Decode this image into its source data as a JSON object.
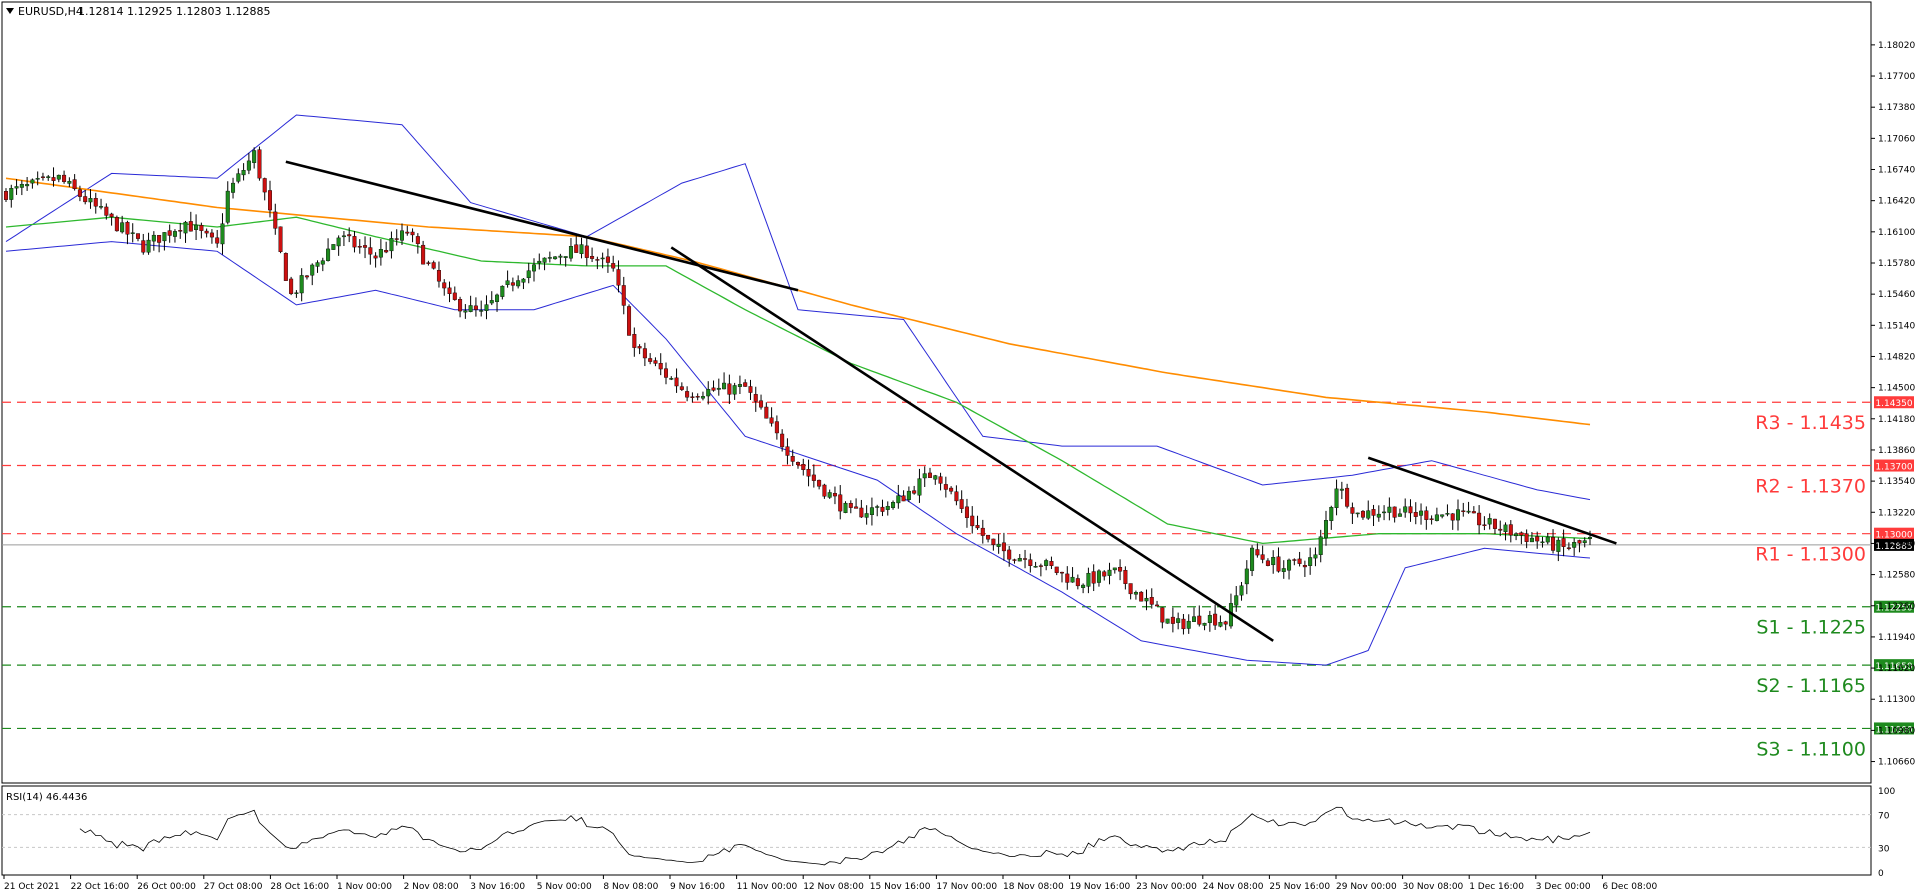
{
  "chart_data": {
    "type": "candlestick",
    "header": {
      "symbol": "EURUSD,H4",
      "ohlc": "1.12814 1.12925 1.12803 1.12885"
    },
    "price_axis": {
      "ylim": [
        1.1045,
        1.1845
      ],
      "ticks": [
        "1.18020",
        "1.17700",
        "1.17380",
        "1.17060",
        "1.16740",
        "1.16420",
        "1.16100",
        "1.15780",
        "1.15460",
        "1.15140",
        "1.14820",
        "1.14500",
        "1.14180",
        "1.13860",
        "1.13540",
        "1.13220",
        "1.12900",
        "1.12580",
        "1.12260",
        "1.11940",
        "1.11620",
        "1.11300",
        "1.10980",
        "1.10660"
      ]
    },
    "time_axis": {
      "labels": [
        "21 Oct 2021",
        "22 Oct 16:00",
        "26 Oct 00:00",
        "27 Oct 08:00",
        "28 Oct 16:00",
        "1 Nov 00:00",
        "2 Nov 08:00",
        "3 Nov 16:00",
        "5 Nov 00:00",
        "8 Nov 08:00",
        "9 Nov 16:00",
        "11 Nov 00:00",
        "12 Nov 08:00",
        "15 Nov 16:00",
        "17 Nov 00:00",
        "18 Nov 08:00",
        "19 Nov 16:00",
        "23 Nov 00:00",
        "24 Nov 08:00",
        "25 Nov 16:00",
        "29 Nov 00:00",
        "30 Nov 08:00",
        "1 Dec 16:00",
        "3 Dec 00:00",
        "6 Dec 08:00"
      ]
    },
    "current_price": {
      "value": 1.12885,
      "label": "1.12885"
    },
    "levels": [
      {
        "name": "R3",
        "value": 1.1435,
        "text": "R3 - 1.1435",
        "tag": "1.14350",
        "color": "#ff3b3b"
      },
      {
        "name": "R2",
        "value": 1.137,
        "text": "R2 - 1.1370",
        "tag": "1.13700",
        "color": "#ff3b3b"
      },
      {
        "name": "R1",
        "value": 1.13,
        "text": "R1 - 1.1300",
        "tag": "1.13000",
        "color": "#ff3b3b"
      },
      {
        "name": "S1",
        "value": 1.1225,
        "text": "S1 - 1.1225",
        "tag": "1.12250",
        "color": "#1e8a1e"
      },
      {
        "name": "S2",
        "value": 1.1165,
        "text": "S2 - 1.1165",
        "tag": "1.11650",
        "color": "#1e8a1e"
      },
      {
        "name": "S3",
        "value": 1.11,
        "text": "S3 - 1.1100",
        "tag": "1.11000",
        "color": "#1e8a1e"
      }
    ],
    "indicators": {
      "ma200_color": "#ff8c00",
      "ma20_color": "#2eb82e",
      "bollinger_color": "#2a2ad6",
      "trendline_color": "#000000"
    },
    "colors": {
      "bull": "#1e8a1e",
      "bear": "#cc1010",
      "axis": "#000000"
    },
    "anchors": [
      [
        0,
        1.165
      ],
      [
        10,
        1.1665
      ],
      [
        26,
        1.1595
      ],
      [
        34,
        1.162
      ],
      [
        40,
        1.1595
      ],
      [
        42,
        1.165
      ],
      [
        47,
        1.169
      ],
      [
        54,
        1.1545
      ],
      [
        63,
        1.1605
      ],
      [
        70,
        1.1585
      ],
      [
        76,
        1.161
      ],
      [
        84,
        1.154
      ],
      [
        90,
        1.1525
      ],
      [
        97,
        1.1565
      ],
      [
        106,
        1.159
      ],
      [
        110,
        1.159
      ],
      [
        115,
        1.157
      ],
      [
        119,
        1.149
      ],
      [
        129,
        1.1445
      ],
      [
        140,
        1.145
      ],
      [
        146,
        1.14
      ],
      [
        152,
        1.136
      ],
      [
        160,
        1.132
      ],
      [
        168,
        1.133
      ],
      [
        176,
        1.1365
      ],
      [
        181,
        1.1325
      ],
      [
        187,
        1.1285
      ],
      [
        196,
        1.127
      ],
      [
        203,
        1.125
      ],
      [
        210,
        1.126
      ],
      [
        216,
        1.123
      ],
      [
        221,
        1.1205
      ],
      [
        227,
        1.1215
      ],
      [
        231,
        1.121
      ],
      [
        233,
        1.1235
      ],
      [
        236,
        1.128
      ],
      [
        242,
        1.1265
      ],
      [
        248,
        1.1275
      ],
      [
        252,
        1.135
      ],
      [
        256,
        1.132
      ],
      [
        262,
        1.1325
      ],
      [
        266,
        1.132
      ],
      [
        275,
        1.132
      ],
      [
        286,
        1.13
      ],
      [
        295,
        1.1285
      ],
      [
        300,
        1.1292
      ]
    ],
    "ma200": [
      [
        0,
        1.1665
      ],
      [
        40,
        1.1635
      ],
      [
        60,
        1.1625
      ],
      [
        80,
        1.1615
      ],
      [
        110,
        1.1605
      ],
      [
        130,
        1.158
      ],
      [
        160,
        1.1535
      ],
      [
        190,
        1.1495
      ],
      [
        220,
        1.1465
      ],
      [
        250,
        1.144
      ],
      [
        280,
        1.1425
      ],
      [
        300,
        1.1412
      ]
    ],
    "ma20": [
      [
        0,
        1.1615
      ],
      [
        20,
        1.1625
      ],
      [
        40,
        1.1615
      ],
      [
        55,
        1.1625
      ],
      [
        70,
        1.1605
      ],
      [
        90,
        1.158
      ],
      [
        110,
        1.1575
      ],
      [
        125,
        1.1575
      ],
      [
        140,
        1.153
      ],
      [
        160,
        1.1475
      ],
      [
        180,
        1.1435
      ],
      [
        200,
        1.1375
      ],
      [
        220,
        1.131
      ],
      [
        238,
        1.129
      ],
      [
        260,
        1.13
      ],
      [
        280,
        1.13
      ],
      [
        300,
        1.1295
      ]
    ],
    "bb_upper": [
      [
        0,
        1.16
      ],
      [
        20,
        1.167
      ],
      [
        40,
        1.1665
      ],
      [
        55,
        1.173
      ],
      [
        75,
        1.172
      ],
      [
        88,
        1.164
      ],
      [
        110,
        1.1605
      ],
      [
        128,
        1.166
      ],
      [
        140,
        1.168
      ],
      [
        150,
        1.153
      ],
      [
        170,
        1.152
      ],
      [
        185,
        1.14
      ],
      [
        200,
        1.139
      ],
      [
        218,
        1.139
      ],
      [
        238,
        1.135
      ],
      [
        255,
        1.136
      ],
      [
        270,
        1.1375
      ],
      [
        290,
        1.1345
      ],
      [
        300,
        1.1335
      ]
    ],
    "bb_lower": [
      [
        0,
        1.159
      ],
      [
        20,
        1.16
      ],
      [
        40,
        1.159
      ],
      [
        55,
        1.1535
      ],
      [
        70,
        1.155
      ],
      [
        85,
        1.153
      ],
      [
        100,
        1.153
      ],
      [
        115,
        1.1555
      ],
      [
        125,
        1.15
      ],
      [
        140,
        1.14
      ],
      [
        165,
        1.1355
      ],
      [
        180,
        1.13
      ],
      [
        200,
        1.124
      ],
      [
        215,
        1.119
      ],
      [
        235,
        1.117
      ],
      [
        250,
        1.1165
      ],
      [
        258,
        1.118
      ],
      [
        265,
        1.1265
      ],
      [
        280,
        1.1285
      ],
      [
        300,
        1.1275
      ]
    ],
    "trendlines": [
      {
        "from": [
          53,
          1.1682
        ],
        "to": [
          150,
          1.155
        ]
      },
      {
        "from": [
          126,
          1.1594
        ],
        "to": [
          240,
          1.119
        ]
      },
      {
        "from": [
          258,
          1.1378
        ],
        "to": [
          305,
          1.129
        ]
      }
    ],
    "rsi": {
      "label": "RSI(14) 46.4436",
      "period": 14,
      "ylim": [
        0,
        100
      ],
      "ticks": [
        "100",
        "70",
        "30",
        "0"
      ],
      "levels": [
        70,
        30
      ]
    }
  }
}
